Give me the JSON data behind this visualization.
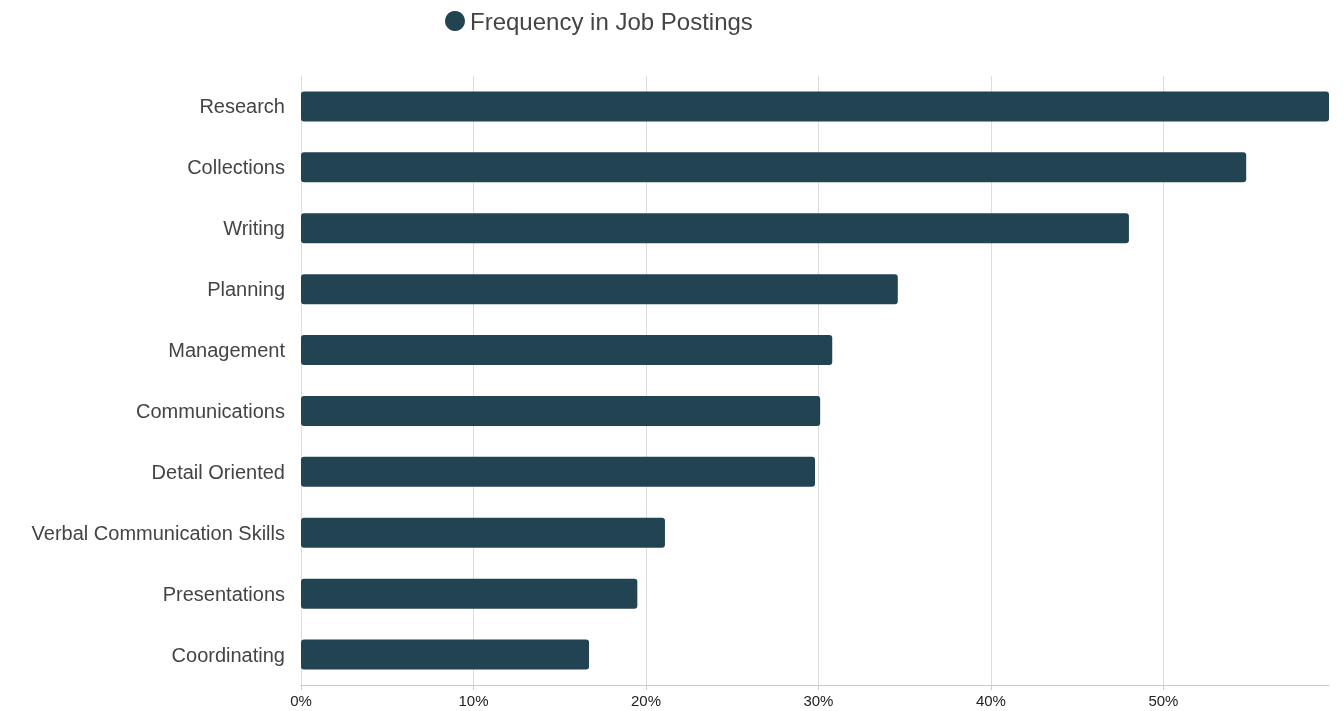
{
  "chart_data": {
    "type": "bar",
    "orientation": "horizontal",
    "categories": [
      "Research",
      "Collections",
      "Writing",
      "Planning",
      "Management",
      "Communications",
      "Detail Oriented",
      "Verbal Communication Skills",
      "Presentations",
      "Coordinating"
    ],
    "series": [
      {
        "name": "Frequency in Job Postings",
        "color": "#224352",
        "values": [
          59.6,
          54.8,
          48.0,
          34.6,
          30.8,
          30.1,
          29.8,
          21.1,
          19.5,
          16.7
        ]
      }
    ],
    "xlim": [
      0,
      59.6
    ],
    "xticks": [
      {
        "value": 0,
        "label": "0%"
      },
      {
        "value": 10,
        "label": "10%"
      },
      {
        "value": 20,
        "label": "20%"
      },
      {
        "value": 30,
        "label": "30%"
      },
      {
        "value": 40,
        "label": "40%"
      },
      {
        "value": 50,
        "label": "50%"
      }
    ],
    "grid": "x",
    "legend": "top"
  }
}
